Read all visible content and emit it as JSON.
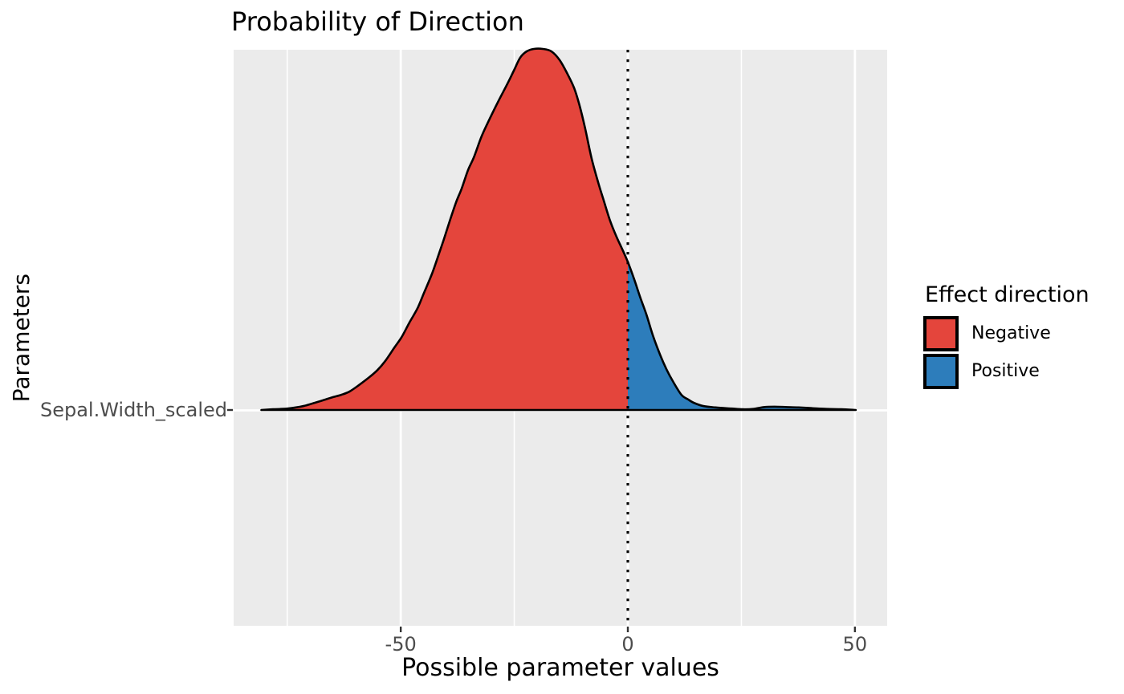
{
  "title": "Probability of Direction",
  "axes": {
    "x_title": "Possible parameter values",
    "y_title": "Parameters",
    "y_tick": "Sepal.Width_scaled",
    "x_ticks": [
      {
        "value": -50,
        "label": "-50"
      },
      {
        "value": 0,
        "label": "0"
      },
      {
        "value": 50,
        "label": "50"
      }
    ]
  },
  "legend": {
    "title": "Effect direction",
    "items": [
      {
        "label": "Negative",
        "color": "#E4453C"
      },
      {
        "label": "Positive",
        "color": "#2D7DBB"
      }
    ]
  },
  "chart_data": {
    "type": "area",
    "subtype": "density",
    "title": "Probability of Direction",
    "xlabel": "Possible parameter values",
    "ylabel": "Parameters",
    "parameter": "Sepal.Width_scaled",
    "x_domain": [
      -86.8,
      57.1
    ],
    "x_major_gridlines": [
      -50,
      0,
      50
    ],
    "x_minor_gridlines": [
      -75,
      -25,
      25
    ],
    "zero_line": 0,
    "legend_position": "right",
    "colors": {
      "negative": "#E4453C",
      "positive": "#2D7DBB",
      "panel": "#EBEBEB",
      "grid": "#FFFFFF",
      "outline": "#000000",
      "tick": "#333333",
      "tick_text": "#4D4D4D"
    },
    "curve_points": [
      [
        -80.7,
        0
      ],
      [
        -78.1,
        0.002
      ],
      [
        -74.9,
        0.004
      ],
      [
        -71.4,
        0.011
      ],
      [
        -68.4,
        0.022
      ],
      [
        -66.6,
        0.029
      ],
      [
        -64.8,
        0.036
      ],
      [
        -63.1,
        0.042
      ],
      [
        -61.3,
        0.051
      ],
      [
        -59.2,
        0.069
      ],
      [
        -56.9,
        0.091
      ],
      [
        -55.1,
        0.111
      ],
      [
        -53.4,
        0.136
      ],
      [
        -51.4,
        0.173
      ],
      [
        -49.8,
        0.202
      ],
      [
        -48.1,
        0.242
      ],
      [
        -46.3,
        0.282
      ],
      [
        -44.9,
        0.324
      ],
      [
        -43.1,
        0.378
      ],
      [
        -41.5,
        0.436
      ],
      [
        -40.5,
        0.473
      ],
      [
        -39.2,
        0.524
      ],
      [
        -37.8,
        0.576
      ],
      [
        -36.6,
        0.613
      ],
      [
        -35.2,
        0.664
      ],
      [
        -33.9,
        0.7
      ],
      [
        -32.2,
        0.758
      ],
      [
        -30.4,
        0.807
      ],
      [
        -28.6,
        0.853
      ],
      [
        -26.5,
        0.904
      ],
      [
        -25.1,
        0.94
      ],
      [
        -23.7,
        0.976
      ],
      [
        -22.3,
        0.993
      ],
      [
        -20.7,
        1
      ],
      [
        -18.7,
        1
      ],
      [
        -16.8,
        0.993
      ],
      [
        -15,
        0.969
      ],
      [
        -13.3,
        0.931
      ],
      [
        -11.8,
        0.891
      ],
      [
        -10.6,
        0.842
      ],
      [
        -9.4,
        0.78
      ],
      [
        -8,
        0.698
      ],
      [
        -6.5,
        0.629
      ],
      [
        -5.3,
        0.58
      ],
      [
        -3.9,
        0.524
      ],
      [
        -2.5,
        0.48
      ],
      [
        -1.4,
        0.45
      ],
      [
        0,
        0.41
      ],
      [
        1.4,
        0.362
      ],
      [
        2.7,
        0.313
      ],
      [
        4.1,
        0.264
      ],
      [
        5.5,
        0.207
      ],
      [
        7.1,
        0.153
      ],
      [
        8.5,
        0.113
      ],
      [
        9.9,
        0.08
      ],
      [
        11.8,
        0.042
      ],
      [
        13.3,
        0.029
      ],
      [
        14.5,
        0.02
      ],
      [
        16.6,
        0.011
      ],
      [
        19.3,
        0.007
      ],
      [
        22.8,
        0.004
      ],
      [
        25.3,
        0.002
      ],
      [
        27.6,
        0.003
      ],
      [
        30,
        0.008
      ],
      [
        32.3,
        0.009
      ],
      [
        35,
        0.008
      ],
      [
        37.6,
        0.007
      ],
      [
        40.6,
        0.005
      ],
      [
        43.8,
        0.003
      ],
      [
        47,
        0.002
      ],
      [
        50.2,
        0
      ]
    ]
  }
}
